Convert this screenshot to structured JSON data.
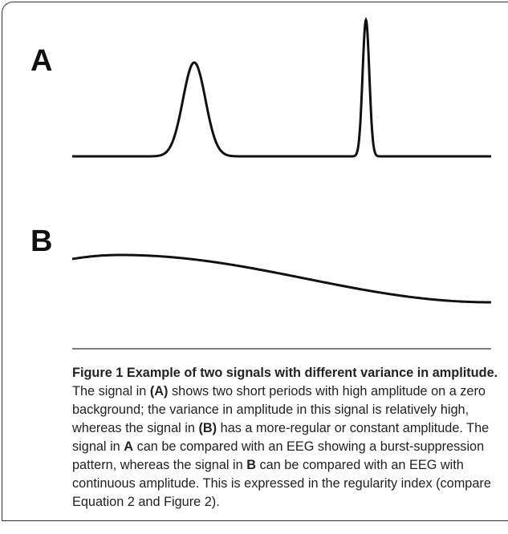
{
  "figure": {
    "panels": [
      {
        "label": "A"
      },
      {
        "label": "B"
      }
    ],
    "caption": {
      "title": "Figure 1 Example of two signals with different variance in amplitude.",
      "segments": [
        {
          "text": "The signal in",
          "bold": false
        },
        {
          "text": "(A)",
          "bold": true
        },
        {
          "text": "shows two short periods with high amplitude on a zero background; the variance in amplitude in this signal is relatively high, whereas the signal in",
          "bold": false
        },
        {
          "text": "(B)",
          "bold": true
        },
        {
          "text": "has a more-regular or constant amplitude. The signal in",
          "bold": false
        },
        {
          "text": "A",
          "bold": true
        },
        {
          "text": "can be compared with an EEG showing a burst-suppression pattern, whereas the signal in",
          "bold": false
        },
        {
          "text": "B",
          "bold": true
        },
        {
          "text": "can be compared with an EEG with continuous amplitude. This is expressed in the regularity index (compare Equation 2 and Figure 2).",
          "bold": false
        }
      ]
    }
  }
}
